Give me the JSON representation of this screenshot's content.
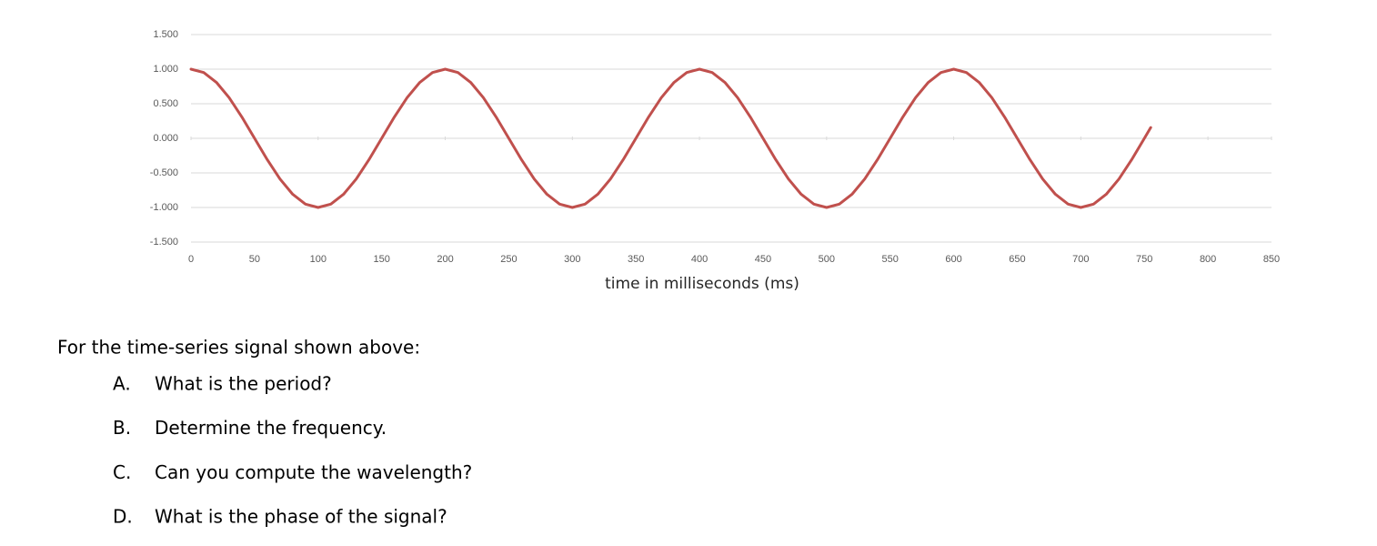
{
  "chart_data": {
    "type": "line",
    "xlabel": "time in milliseconds (ms)",
    "x": [
      0,
      10,
      20,
      30,
      40,
      50,
      60,
      70,
      80,
      90,
      100,
      110,
      120,
      130,
      140,
      150,
      160,
      170,
      180,
      190,
      200,
      210,
      220,
      230,
      240,
      250,
      260,
      270,
      280,
      290,
      300,
      310,
      320,
      330,
      340,
      350,
      360,
      370,
      380,
      390,
      400,
      410,
      420,
      430,
      440,
      450,
      460,
      470,
      480,
      490,
      500,
      510,
      520,
      530,
      540,
      550,
      560,
      570,
      580,
      590,
      600,
      610,
      620,
      630,
      640,
      650,
      660,
      670,
      680,
      690,
      700,
      710,
      720,
      730,
      740,
      750,
      755
    ],
    "series": [
      {
        "color": "#c0504d",
        "values": [
          1,
          0.951,
          0.809,
          0.588,
          0.309,
          0,
          -0.309,
          -0.588,
          -0.809,
          -0.951,
          -1,
          -0.951,
          -0.809,
          -0.588,
          -0.309,
          0,
          0.309,
          0.588,
          0.809,
          0.951,
          1,
          0.951,
          0.809,
          0.588,
          0.309,
          0,
          -0.309,
          -0.588,
          -0.809,
          -0.951,
          -1,
          -0.951,
          -0.809,
          -0.588,
          -0.309,
          0,
          0.309,
          0.588,
          0.809,
          0.951,
          1,
          0.951,
          0.809,
          0.588,
          0.309,
          0,
          -0.309,
          -0.588,
          -0.809,
          -0.951,
          -1,
          -0.951,
          -0.809,
          -0.588,
          -0.309,
          0,
          0.309,
          0.588,
          0.809,
          0.951,
          1,
          0.951,
          0.809,
          0.588,
          0.309,
          0,
          -0.309,
          -0.588,
          -0.809,
          -0.951,
          -1,
          -0.951,
          -0.809,
          -0.588,
          -0.309,
          0,
          0.156
        ]
      }
    ],
    "xlim": [
      0,
      850
    ],
    "xticks": [
      0,
      50,
      100,
      150,
      200,
      250,
      300,
      350,
      400,
      450,
      500,
      550,
      600,
      650,
      700,
      750,
      800,
      850
    ],
    "ylim": [
      -1.5,
      1.5
    ],
    "yticks": [
      {
        "value": -1.5,
        "label": "-1.500"
      },
      {
        "value": -1,
        "label": "-1.000"
      },
      {
        "value": -0.5,
        "label": "-0.500"
      },
      {
        "value": 0,
        "label": "0.000"
      },
      {
        "value": 0.5,
        "label": "0.500"
      },
      {
        "value": 1,
        "label": "1.000"
      },
      {
        "value": 1.5,
        "label": "1.500"
      }
    ],
    "grid": true
  },
  "prompt": "For the time-series signal shown above:",
  "questions": [
    {
      "letter": "A.",
      "text": "What is the period?"
    },
    {
      "letter": "B.",
      "text": "Determine the frequency."
    },
    {
      "letter": "C.",
      "text": "Can you compute the wavelength?"
    },
    {
      "letter": "D.",
      "text": "What is the phase of the signal?"
    }
  ]
}
